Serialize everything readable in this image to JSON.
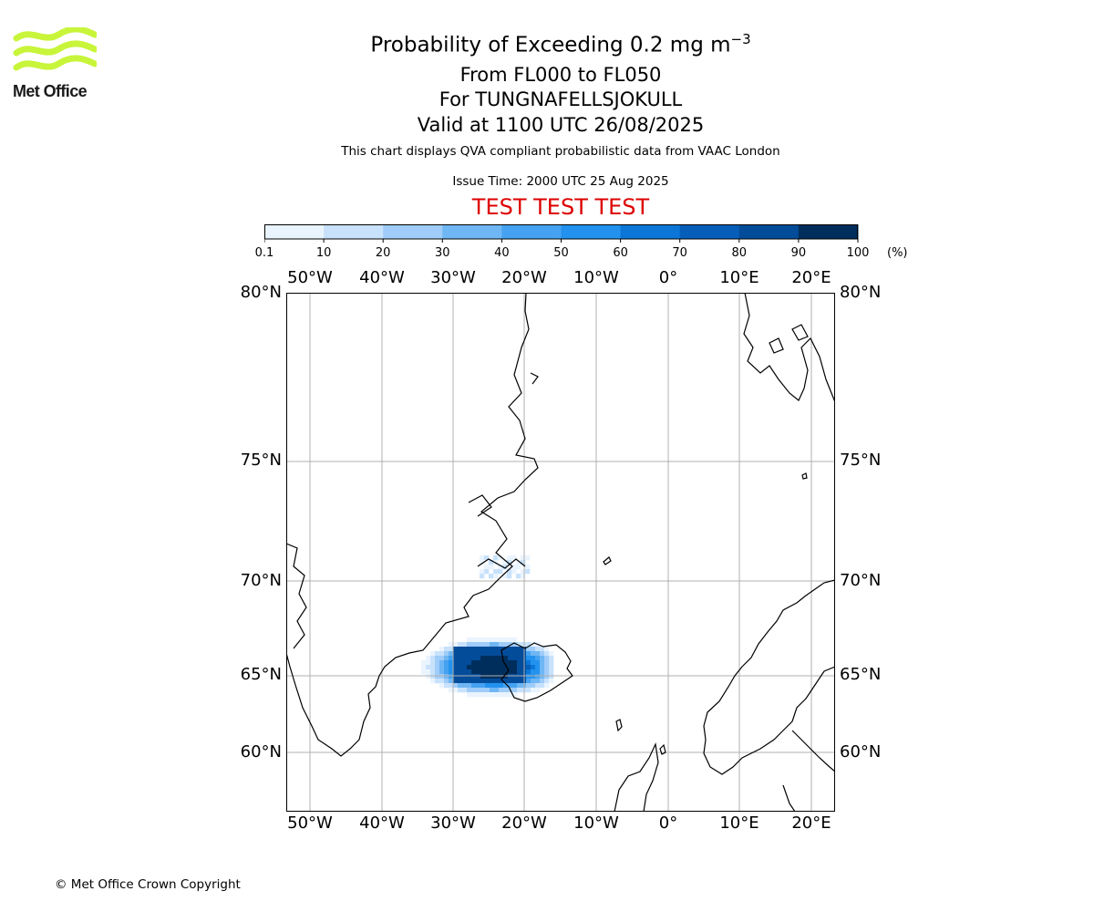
{
  "title": {
    "line1_prefix": "Probability of Exceeding 0.2 mg m",
    "line1_sup": "−3",
    "line2": "From FL000 to FL050",
    "line3": "For TUNGNAFELLSJOKULL",
    "line4": "Valid at 1100 UTC 26/08/2025"
  },
  "description": "This chart displays QVA compliant probabilistic data from VAAC London",
  "issue_time": "Issue Time: 2000 UTC 25 Aug 2025",
  "test_banner": "TEST TEST TEST",
  "logo": {
    "text": "Met Office",
    "color": "#c8f53a"
  },
  "copyright": "© Met Office Crown Copyright",
  "colorbar": {
    "ticks": [
      "0.1",
      "10",
      "20",
      "30",
      "40",
      "50",
      "60",
      "70",
      "80",
      "90",
      "100"
    ],
    "unit": "(%)",
    "colors": [
      "#eaf4fe",
      "#c8e2fc",
      "#9fccf8",
      "#6fb6f4",
      "#45a2f0",
      "#2292ee",
      "#0b76d8",
      "#065eb8",
      "#034c9a",
      "#002e5c"
    ]
  },
  "map": {
    "lon_labels": [
      "50°W",
      "40°W",
      "30°W",
      "20°W",
      "10°W",
      "0°",
      "10°E",
      "20°E"
    ],
    "lat_labels": [
      "80°N",
      "75°N",
      "70°N",
      "65°N",
      "60°N"
    ],
    "plume_note": "ash probability plume west and over Iceland"
  }
}
